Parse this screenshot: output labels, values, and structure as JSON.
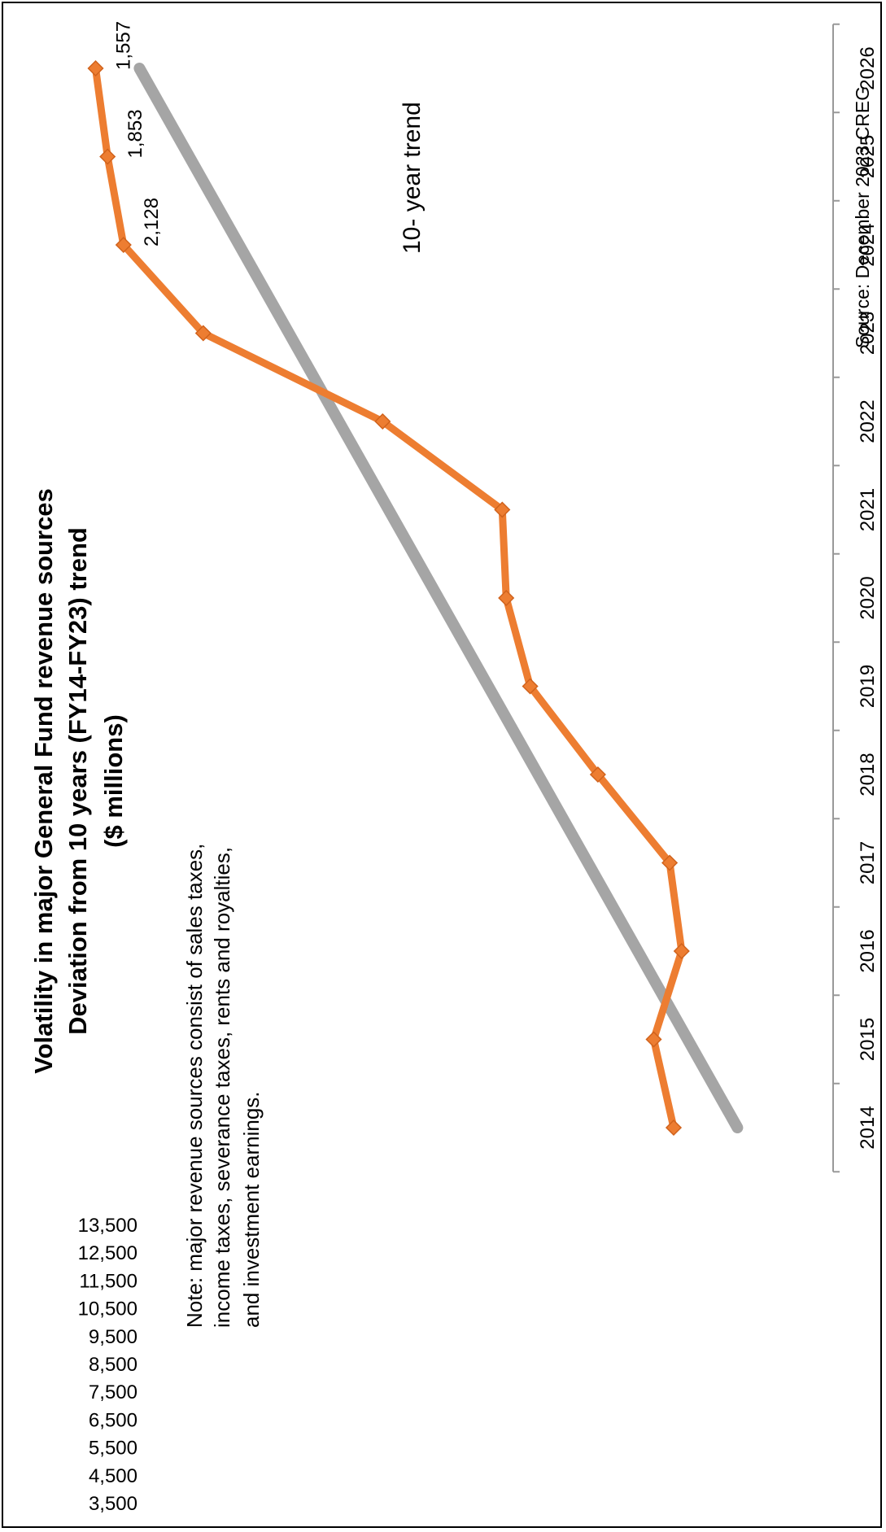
{
  "chart_data": {
    "type": "line",
    "title": "Volatility in major General Fund revenue sources",
    "subtitle_lines": [
      "Deviation from 10 years (FY14-FY23) trend",
      "($ millions)"
    ],
    "note_lines": [
      "Note: major revenue sources consist of sales taxes,",
      "income taxes, severance taxes, rents and royalties,",
      "and investment earnings."
    ],
    "source": "Source: December 2023 CREG",
    "trend_label": "10- year trend",
    "categories": [
      "2014",
      "2015",
      "2016",
      "2017",
      "2018",
      "2019",
      "2020",
      "2021",
      "2022",
      "2023",
      "2024",
      "2025",
      "2026"
    ],
    "ylim": [
      3500,
      13500
    ],
    "y_ticks": [
      "3,500",
      "4,500",
      "5,500",
      "6,500",
      "7,500",
      "8,500",
      "9,500",
      "10,500",
      "11,500",
      "12,500",
      "13,500"
    ],
    "series": [
      {
        "values": [
          5500,
          5750,
          5400,
          5550,
          6450,
          7300,
          7600,
          7650,
          9150,
          11400,
          12400,
          12600,
          12750
        ],
        "color": "#ED7D31",
        "marker": "diamond"
      },
      {
        "values": [
          4700,
          null,
          null,
          null,
          null,
          null,
          null,
          null,
          null,
          null,
          null,
          null,
          12200
        ],
        "color": "#A5A5A5",
        "line_width": "thick"
      }
    ],
    "data_labels": [
      {
        "category": "2024",
        "text": "2,128"
      },
      {
        "category": "2025",
        "text": "1,853"
      },
      {
        "category": "2026",
        "text": "1,557"
      }
    ],
    "grid": false,
    "legend": "none",
    "orientation": "rotated 90 degrees counter-clockwise on page"
  }
}
